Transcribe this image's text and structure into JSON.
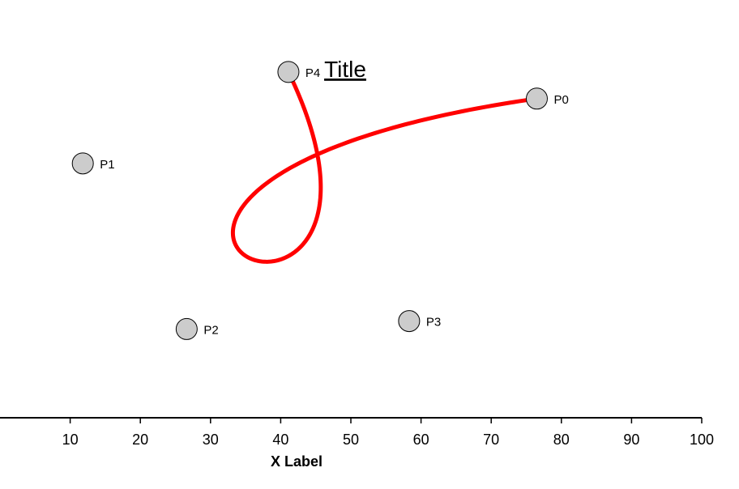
{
  "chart_data": {
    "type": "scatter",
    "title": "Title",
    "xlabel": "X Label",
    "ylabel": "",
    "xlim": [
      0,
      100
    ],
    "ylim": [
      0,
      100
    ],
    "x_ticks": [
      10,
      20,
      30,
      40,
      50,
      60,
      70,
      80,
      90,
      100
    ],
    "grid": false,
    "points": [
      {
        "label": "P0",
        "x": 76.5,
        "y": 92.1
      },
      {
        "label": "P1",
        "x": 11.8,
        "y": 73.4
      },
      {
        "label": "P2",
        "x": 26.6,
        "y": 25.6
      },
      {
        "label": "P3",
        "x": 58.3,
        "y": 27.9
      },
      {
        "label": "P4",
        "x": 41.1,
        "y": 99.8
      }
    ],
    "curve": {
      "type": "bezier",
      "control_point_labels": [
        "P0",
        "P1",
        "P2",
        "P3",
        "P4"
      ],
      "color": "#ff0000"
    },
    "point_fill": "#cccccc",
    "point_stroke": "#000000"
  }
}
